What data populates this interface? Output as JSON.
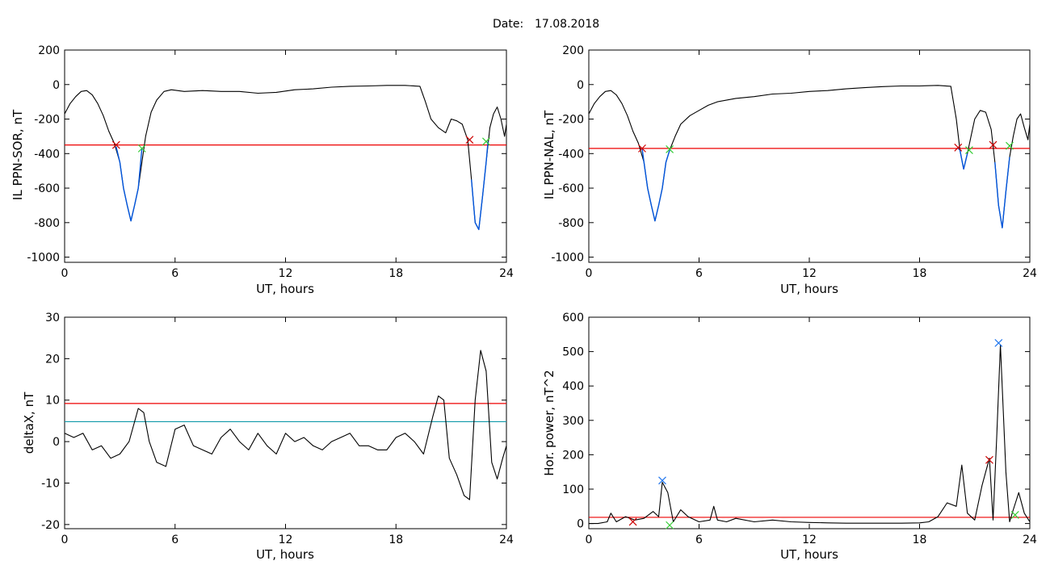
{
  "figure": {
    "date_label": "Date:",
    "date_value": "17.08.2018"
  },
  "colors": {
    "trace": "#000000",
    "event": "#0055dd",
    "threshold": "#ee0000",
    "secondary_threshold": "#1199aa",
    "start_marker": "#cc0000",
    "end_marker": "#33cc33",
    "peak_marker": "#2277ee"
  },
  "chart_data": [
    {
      "id": "il-sor",
      "type": "line",
      "xlabel": "UT, hours",
      "ylabel": "IL PPN-SOR, nT",
      "xlim": [
        0,
        24
      ],
      "ylim": [
        -1030,
        200
      ],
      "xticks": [
        0,
        6,
        12,
        18,
        24
      ],
      "yticks": [
        200,
        0,
        -200,
        -400,
        -600,
        -800,
        -1000
      ],
      "series": [
        {
          "x": [
            0,
            0.3,
            0.6,
            0.9,
            1.2,
            1.5,
            1.8,
            2.1,
            2.4,
            2.7,
            3.0,
            3.2,
            3.4,
            3.6,
            3.8,
            4.0,
            4.2,
            4.4,
            4.7,
            5.0,
            5.4,
            5.8,
            6.5,
            7.5,
            8.5,
            9.5,
            10.5,
            11.5,
            12.5,
            13.5,
            14.5,
            15.5,
            16.5,
            17.5,
            18.5,
            19.3,
            19.6,
            19.9,
            20.3,
            20.7,
            21.0,
            21.3,
            21.6,
            21.9,
            22.1,
            22.3,
            22.5,
            22.7,
            22.9,
            23.1,
            23.3,
            23.5,
            23.7,
            23.9,
            24
          ],
          "y": [
            -170,
            -110,
            -70,
            -40,
            -35,
            -60,
            -110,
            -180,
            -270,
            -340,
            -450,
            -600,
            -700,
            -790,
            -700,
            -600,
            -450,
            -300,
            -160,
            -90,
            -40,
            -30,
            -40,
            -35,
            -40,
            -40,
            -50,
            -45,
            -30,
            -25,
            -15,
            -10,
            -8,
            -5,
            -5,
            -10,
            -100,
            -200,
            -250,
            -280,
            -200,
            -210,
            -230,
            -320,
            -550,
            -800,
            -840,
            -650,
            -450,
            -250,
            -170,
            -130,
            -200,
            -300,
            -230
          ]
        }
      ],
      "event_segments": [
        {
          "x": [
            2.8,
            3.0,
            3.2,
            3.4,
            3.6,
            3.8,
            4.0,
            4.2
          ],
          "y": [
            -360,
            -450,
            -600,
            -700,
            -790,
            -700,
            -600,
            -370
          ]
        },
        {
          "x": [
            22.1,
            22.3,
            22.5,
            22.7,
            22.9,
            23.0
          ],
          "y": [
            -550,
            -800,
            -840,
            -650,
            -450,
            -330
          ]
        }
      ],
      "threshold": -350,
      "start_markers": [
        {
          "x": 2.8,
          "y": -350
        },
        {
          "x": 22.0,
          "y": -320
        }
      ],
      "end_markers": [
        {
          "x": 4.2,
          "y": -370
        },
        {
          "x": 22.9,
          "y": -330
        }
      ],
      "peak_markers": []
    },
    {
      "id": "il-nal",
      "type": "line",
      "xlabel": "UT, hours",
      "ylabel": "IL PPN-NAL, nT",
      "xlim": [
        0,
        24
      ],
      "ylim": [
        -1030,
        200
      ],
      "xticks": [
        0,
        6,
        12,
        18,
        24
      ],
      "yticks": [
        200,
        0,
        -200,
        -400,
        -600,
        -800,
        -1000
      ],
      "series": [
        {
          "x": [
            0,
            0.3,
            0.6,
            0.9,
            1.2,
            1.5,
            1.8,
            2.1,
            2.4,
            2.7,
            3.0,
            3.2,
            3.4,
            3.6,
            3.8,
            4.0,
            4.2,
            4.4,
            4.7,
            5.0,
            5.5,
            6.0,
            6.5,
            7.0,
            8.0,
            9.0,
            10.0,
            11.0,
            12.0,
            13.0,
            14.0,
            15.0,
            16.0,
            17.0,
            18.0,
            19.0,
            19.7,
            20.0,
            20.2,
            20.4,
            20.6,
            20.8,
            21.0,
            21.3,
            21.6,
            21.9,
            22.1,
            22.3,
            22.5,
            22.7,
            22.9,
            23.1,
            23.3,
            23.5,
            23.7,
            23.9,
            24
          ],
          "y": [
            -170,
            -110,
            -70,
            -40,
            -35,
            -60,
            -110,
            -180,
            -270,
            -340,
            -450,
            -600,
            -700,
            -790,
            -700,
            -600,
            -450,
            -380,
            -300,
            -230,
            -180,
            -150,
            -120,
            -100,
            -80,
            -70,
            -55,
            -50,
            -40,
            -35,
            -25,
            -18,
            -12,
            -8,
            -8,
            -5,
            -10,
            -200,
            -380,
            -490,
            -400,
            -300,
            -200,
            -150,
            -160,
            -260,
            -450,
            -700,
            -830,
            -620,
            -420,
            -300,
            -200,
            -170,
            -250,
            -320,
            -230
          ]
        }
      ],
      "event_segments": [
        {
          "x": [
            2.9,
            3.0,
            3.2,
            3.4,
            3.6,
            3.8,
            4.0,
            4.2,
            4.4
          ],
          "y": [
            -370,
            -450,
            -600,
            -700,
            -790,
            -700,
            -600,
            -450,
            -380
          ]
        },
        {
          "x": [
            20.1,
            20.2,
            20.4,
            20.6
          ],
          "y": [
            -370,
            -380,
            -490,
            -400
          ]
        },
        {
          "x": [
            22.1,
            22.3,
            22.5,
            22.7,
            22.9
          ],
          "y": [
            -450,
            -700,
            -830,
            -620,
            -420
          ]
        }
      ],
      "threshold": -370,
      "start_markers": [
        {
          "x": 2.9,
          "y": -370
        },
        {
          "x": 20.1,
          "y": -365
        },
        {
          "x": 22.0,
          "y": -350
        }
      ],
      "end_markers": [
        {
          "x": 4.4,
          "y": -375
        },
        {
          "x": 20.7,
          "y": -380
        },
        {
          "x": 22.9,
          "y": -355
        }
      ],
      "peak_markers": []
    },
    {
      "id": "deltax",
      "type": "line",
      "xlabel": "UT, hours",
      "ylabel": "deltaX, nT",
      "xlim": [
        0,
        24
      ],
      "ylim": [
        -21,
        30
      ],
      "xticks": [
        0,
        6,
        12,
        18,
        24
      ],
      "yticks": [
        30,
        20,
        10,
        0,
        -10,
        -20
      ],
      "series": [
        {
          "x": [
            0,
            0.5,
            1.0,
            1.5,
            2.0,
            2.5,
            3.0,
            3.5,
            4.0,
            4.3,
            4.6,
            5.0,
            5.5,
            6.0,
            6.5,
            7.0,
            7.5,
            8.0,
            8.5,
            9.0,
            9.5,
            10.0,
            10.5,
            11.0,
            11.5,
            12.0,
            12.5,
            13.0,
            13.5,
            14.0,
            14.5,
            15.0,
            15.5,
            16.0,
            16.5,
            17.0,
            17.5,
            18.0,
            18.5,
            19.0,
            19.5,
            20.0,
            20.3,
            20.6,
            20.9,
            21.3,
            21.7,
            22.0,
            22.3,
            22.6,
            22.9,
            23.2,
            23.5,
            23.8,
            24
          ],
          "y": [
            2,
            1,
            2,
            -2,
            -1,
            -4,
            -3,
            0,
            8,
            7,
            0,
            -5,
            -6,
            3,
            4,
            -1,
            -2,
            -3,
            1,
            3,
            0,
            -2,
            2,
            -1,
            -3,
            2,
            0,
            1,
            -1,
            -2,
            0,
            1,
            2,
            -1,
            -1,
            -2,
            -2,
            1,
            2,
            0,
            -3,
            6,
            11,
            10,
            -4,
            -8,
            -13,
            -14,
            10,
            22,
            17,
            -5,
            -9,
            -4,
            -1
          ]
        }
      ],
      "event_segments": [],
      "threshold": 9.2,
      "secondary_threshold": 4.8,
      "start_markers": [],
      "end_markers": [],
      "peak_markers": []
    },
    {
      "id": "hor-power",
      "type": "line",
      "xlabel": "UT, hours",
      "ylabel": "Hor. power, nT^2",
      "xlim": [
        0,
        24
      ],
      "ylim": [
        -15,
        600
      ],
      "xticks": [
        0,
        6,
        12,
        18,
        24
      ],
      "yticks": [
        600,
        500,
        400,
        300,
        200,
        100,
        0
      ],
      "series": [
        {
          "x": [
            0,
            0.5,
            1.0,
            1.2,
            1.5,
            2.0,
            2.5,
            3.0,
            3.5,
            3.8,
            4.0,
            4.3,
            4.6,
            5.0,
            5.4,
            6.0,
            6.6,
            6.8,
            7.0,
            7.5,
            8.0,
            9.0,
            10.0,
            11.0,
            12.0,
            13.0,
            14.0,
            15.0,
            16.0,
            17.0,
            18.0,
            18.5,
            19.0,
            19.5,
            20.0,
            20.3,
            20.6,
            21.0,
            21.4,
            21.8,
            22.0,
            22.2,
            22.4,
            22.7,
            22.9,
            23.1,
            23.4,
            23.7,
            24
          ],
          "y": [
            0,
            0,
            5,
            30,
            5,
            20,
            10,
            15,
            35,
            20,
            120,
            90,
            5,
            40,
            20,
            5,
            10,
            50,
            10,
            5,
            15,
            5,
            10,
            5,
            3,
            2,
            1,
            1,
            1,
            1,
            2,
            5,
            20,
            60,
            50,
            170,
            30,
            10,
            110,
            190,
            10,
            250,
            520,
            150,
            5,
            40,
            90,
            30,
            5
          ]
        }
      ],
      "event_segments": [],
      "threshold": 18,
      "start_markers": [
        {
          "x": 2.4,
          "y": 5
        },
        {
          "x": 21.8,
          "y": 185
        }
      ],
      "end_markers": [
        {
          "x": 4.4,
          "y": -5
        },
        {
          "x": 23.2,
          "y": 25
        }
      ],
      "peak_markers": [
        {
          "x": 4.0,
          "y": 125
        },
        {
          "x": 22.3,
          "y": 525
        }
      ]
    }
  ]
}
